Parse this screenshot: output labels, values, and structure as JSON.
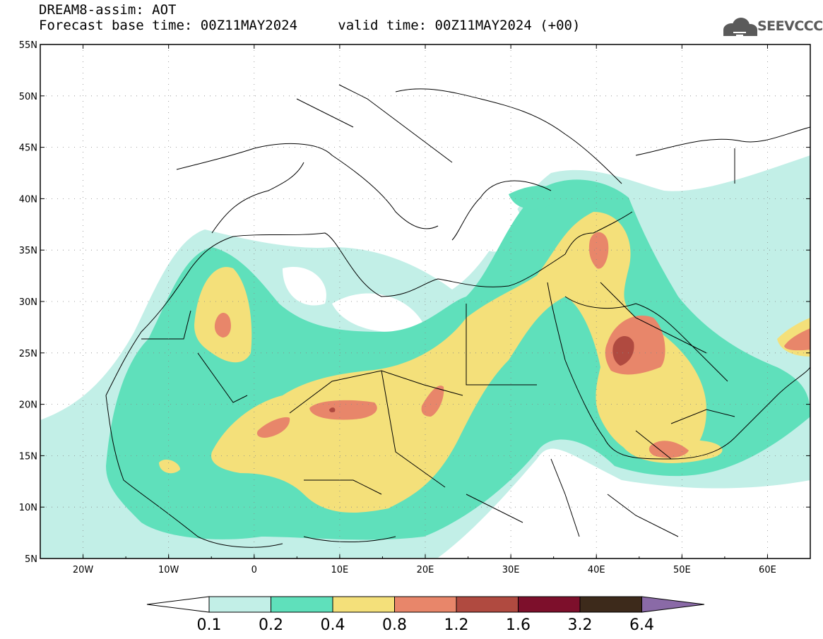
{
  "header": {
    "title": "DREAM8-assim: AOT",
    "forecast_base": "Forecast base time: 00Z11MAY2024",
    "valid_time": "valid time: 00Z11MAY2024 (+00)"
  },
  "logo": {
    "text": "SEEVCCC",
    "icon": "cloud-icon"
  },
  "map": {
    "lat_range": [
      5,
      55
    ],
    "lon_range": [
      -25,
      65
    ],
    "lat_ticks": [
      "55N",
      "50N",
      "45N",
      "40N",
      "35N",
      "30N",
      "25N",
      "20N",
      "15N",
      "10N",
      "5N"
    ],
    "lon_ticks": [
      "20W",
      "10W",
      "0",
      "10E",
      "20E",
      "30E",
      "40E",
      "50E",
      "60E"
    ],
    "field": "AOT"
  },
  "colorbar": {
    "labels": [
      "0.1",
      "0.2",
      "0.4",
      "0.8",
      "1.2",
      "1.6",
      "3.2",
      "6.4"
    ],
    "colors": [
      "#ffffff",
      "#c2efe7",
      "#5fe0bb",
      "#f4e07a",
      "#e8866a",
      "#b04a40",
      "#7d0f2b",
      "#3d2a1b",
      "#8a6aa7"
    ]
  }
}
